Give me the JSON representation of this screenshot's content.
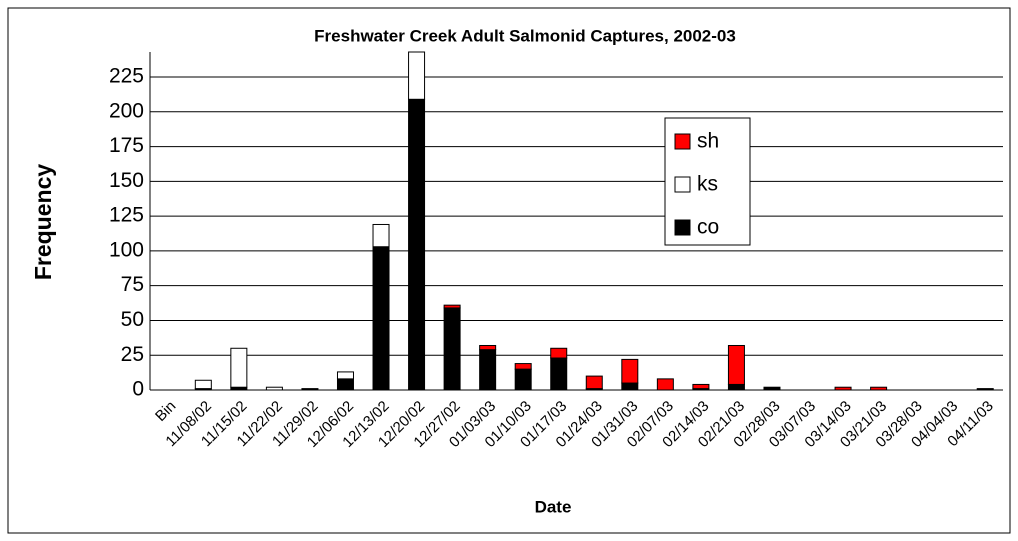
{
  "chart_data": {
    "type": "stacked_bar",
    "title": "Freshwater Creek Adult Salmonid Captures, 2002-03",
    "x_label": "Date",
    "y_label": "Frequency",
    "categories": [
      "Bin",
      "11/08/02",
      "11/15/02",
      "11/22/02",
      "11/29/02",
      "12/06/02",
      "12/13/02",
      "12/20/02",
      "12/27/02",
      "01/03/03",
      "01/10/03",
      "01/17/03",
      "01/24/03",
      "01/31/03",
      "02/07/03",
      "02/14/03",
      "02/21/03",
      "02/28/03",
      "03/07/03",
      "03/14/03",
      "03/21/03",
      "03/28/03",
      "04/04/03",
      "04/11/03"
    ],
    "series": [
      {
        "name": "co",
        "color": "#000000",
        "values": [
          0,
          1,
          2,
          0,
          1,
          8,
          103,
          209,
          59,
          29,
          15,
          23,
          1,
          5,
          0,
          1,
          4,
          2,
          0,
          0,
          0,
          0,
          0,
          1
        ]
      },
      {
        "name": "ks",
        "color": "#ffffff",
        "values": [
          0,
          6,
          28,
          2,
          0,
          5,
          16,
          34,
          0,
          0,
          0,
          0,
          0,
          0,
          0,
          0,
          0,
          0,
          0,
          0,
          0,
          0,
          0,
          0
        ]
      },
      {
        "name": "sh",
        "color": "#ff0000",
        "values": [
          0,
          0,
          0,
          0,
          0,
          0,
          0,
          0,
          2,
          3,
          4,
          7,
          9,
          17,
          8,
          3,
          28,
          0,
          0,
          2,
          2,
          0,
          0,
          0
        ]
      }
    ],
    "ylim": [
      0,
      243
    ],
    "yticks": [
      0,
      25,
      50,
      75,
      100,
      125,
      150,
      175,
      200,
      225
    ],
    "grid": true
  }
}
